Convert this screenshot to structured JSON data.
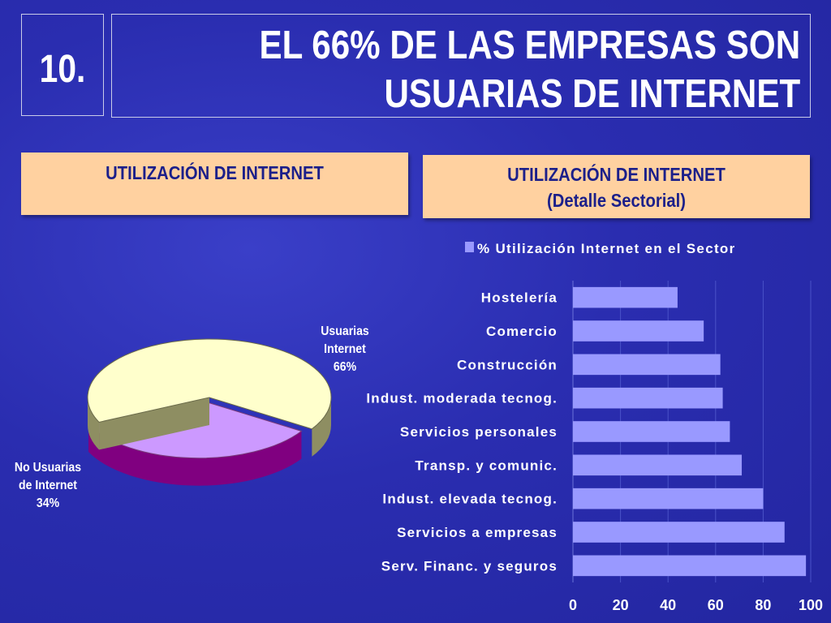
{
  "slide": {
    "number": "10.",
    "title_line1": "EL 66% DE LAS EMPRESAS SON",
    "title_line2": "USUARIAS DE INTERNET"
  },
  "left_panel": {
    "title": "UTILIZACIÓN DE INTERNET"
  },
  "right_panel": {
    "title_line1": "UTILIZACIÓN DE INTERNET",
    "title_line2": "(Detalle Sectorial)"
  },
  "colors": {
    "pie_users": "#ffffcc",
    "pie_users_side": "#8e8e62",
    "pie_non_users": "#cc99ff",
    "pie_non_users_side": "#800080",
    "bar_fill": "#9999ff",
    "panel_bg": "#ffd1a0"
  },
  "chart_data": [
    {
      "type": "pie",
      "title": "UTILIZACIÓN DE INTERNET",
      "slices": [
        {
          "label_line1": "Usuarias",
          "label_line2": "Internet",
          "label_pct": "66%",
          "value": 66
        },
        {
          "label_line1": "No Usuarias",
          "label_line2": "de Internet",
          "label_pct": "34%",
          "value": 34
        }
      ]
    },
    {
      "type": "bar",
      "orientation": "horizontal",
      "title": "UTILIZACIÓN DE INTERNET (Detalle Sectorial)",
      "legend": "% Utilización Internet en el Sector",
      "categories": [
        "Hostelería",
        "Comercio",
        "Construcción",
        "Indust. moderada tecnog.",
        "Servicios personales",
        "Transp. y comunic.",
        "Indust. elevada tecnog.",
        "Servicios a empresas",
        "Serv. Financ. y seguros"
      ],
      "values": [
        44,
        55,
        62,
        63,
        66,
        71,
        80,
        89,
        98
      ],
      "xlim": [
        0,
        100
      ],
      "xticks": [
        "0",
        "20",
        "40",
        "60",
        "80",
        "100"
      ],
      "grid": true
    }
  ]
}
